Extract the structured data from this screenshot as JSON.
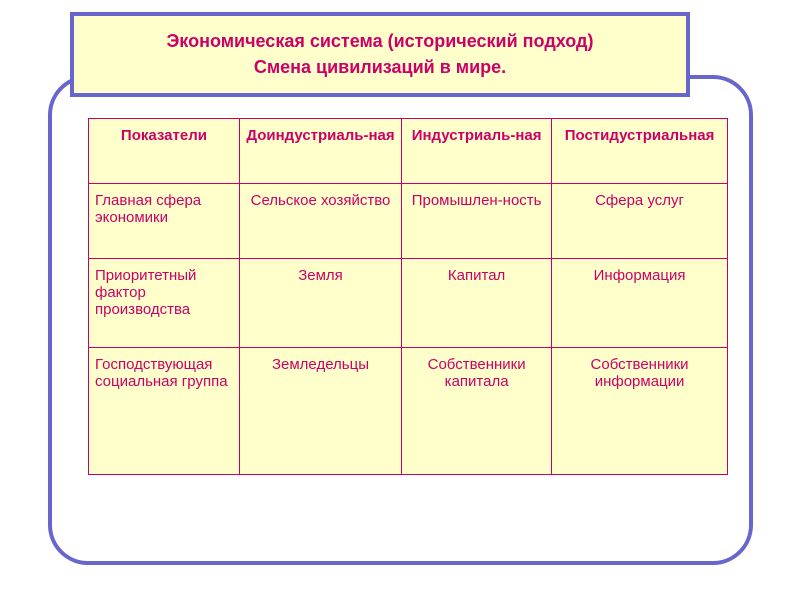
{
  "title": {
    "line1": "Экономическая система (исторический подход)",
    "line2": "Смена цивилизаций в мире."
  },
  "table": {
    "headers": {
      "c0": "Показатели",
      "c1": "Доиндустриаль-ная",
      "c2": "Индустриаль-ная",
      "c3": "Постидустриальная"
    },
    "rows": [
      {
        "label_l1": "Главная сфера",
        "label_l2": "экономики",
        "c1": "Сельское хозяйство",
        "c2": "Промышлен-ность",
        "c3": "Сфера услуг"
      },
      {
        "label_l1": "Приоритетный",
        "label_l2": "фактор производства",
        "c1": "Земля",
        "c2": "Капитал",
        "c3": "Информация"
      },
      {
        "label_l1": "Господствующая",
        "label_l2": "социальная группа",
        "c1": "Земледельцы",
        "c2": "Собственники капитала",
        "c3": "Собственники информации"
      }
    ]
  },
  "colors": {
    "accent": "#cc0066",
    "border": "#6666cc",
    "fill": "#ffffcc",
    "background": "#ffffff"
  }
}
